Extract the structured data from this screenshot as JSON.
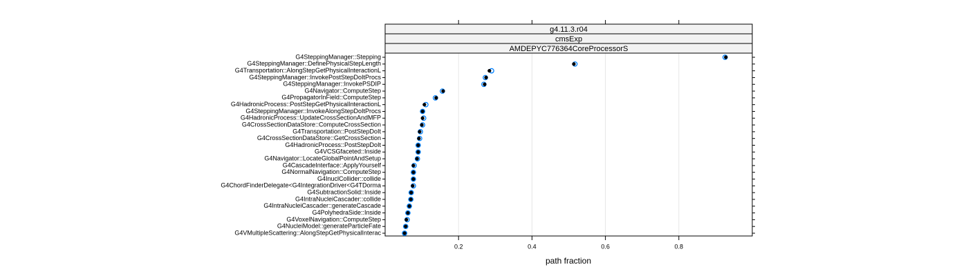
{
  "chart_data": {
    "type": "dot",
    "strips": [
      "g4.11.3.r04",
      "cmsExp",
      "AMDEPYC776364CoreProcessorS"
    ],
    "xlabel": "path fraction",
    "categories": [
      "G4SteppingManager::Stepping",
      "G4SteppingManager::DefinePhysicalStepLength",
      "G4Transportation::AlongStepGetPhysicalInteractionL",
      "G4SteppingManager::InvokePostStepDoItProcs",
      "G4SteppingManager::InvokePSDIP",
      "G4Navigator::ComputeStep",
      "G4PropagatorInField::ComputeStep",
      "G4HadronicProcess::PostStepGetPhysicalInteractionL",
      "G4SteppingManager::InvokeAlongStepDoItProcs",
      "G4HadronicProcess::UpdateCrossSectionAndMFP",
      "G4CrossSectionDataStore::ComputeCrossSection",
      "G4Transportation::PostStepDoIt",
      "G4CrossSectionDataStore::GetCrossSection",
      "G4HadronicProcess::PostStepDoIt",
      "G4VCSGfaceted::Inside",
      "G4Navigator::LocateGlobalPointAndSetup",
      "G4CascadeInterface::ApplyYourself",
      "G4NormalNavigation::ComputeStep",
      "G4InuclCollider::collide",
      "G4ChordFinderDelegate<G4IntegrationDriver<G4TDorma",
      "G4SubtractionSolid::Inside",
      "G4IntraNucleiCascader::collide",
      "G4IntraNucleiCascader::generateCascade",
      "G4PolyhedraSide::Inside",
      "G4VoxelNavigation::ComputeStep",
      "G4NucleiModel::generateParticleFate",
      "G4VMultipleScattering::AlongStepGetPhysicalInterac"
    ],
    "series": [
      {
        "color": "#0080ff",
        "marker": "open",
        "values": [
          0.926,
          0.517,
          0.29,
          0.273,
          0.269,
          0.156,
          0.137,
          0.111,
          0.102,
          0.105,
          0.102,
          0.096,
          0.094,
          0.09,
          0.09,
          0.088,
          0.079,
          0.077,
          0.077,
          0.077,
          0.071,
          0.07,
          0.066,
          0.062,
          0.06,
          0.056,
          0.053
        ]
      },
      {
        "color": "#000000",
        "marker": "filled",
        "values": [
          0.928,
          0.514,
          0.284,
          0.275,
          0.271,
          0.158,
          0.139,
          0.107,
          0.102,
          0.102,
          0.1,
          0.094,
          0.092,
          0.09,
          0.09,
          0.087,
          0.077,
          0.077,
          0.077,
          0.075,
          0.071,
          0.07,
          0.066,
          0.062,
          0.058,
          0.056,
          0.053
        ]
      }
    ],
    "xlim": [
      0,
      1
    ],
    "xticks": [
      0.2,
      0.4,
      0.6,
      0.8
    ],
    "grid": true
  }
}
